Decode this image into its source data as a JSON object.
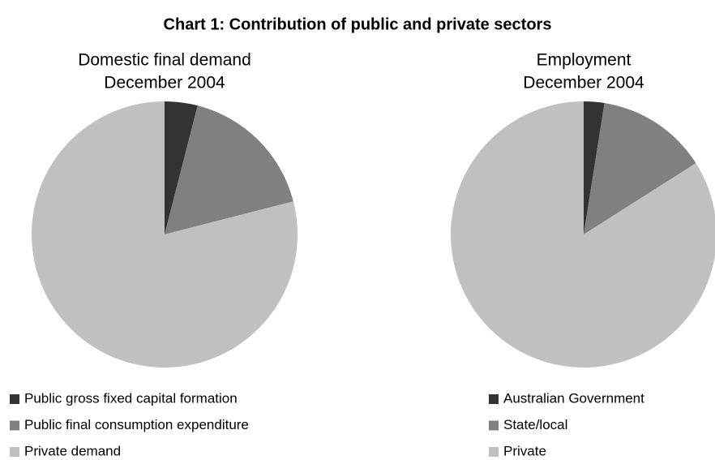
{
  "title": "Chart 1:  Contribution of public and private sectors",
  "chart_data": [
    {
      "type": "pie",
      "title": "Domestic final demand",
      "subtitle": "December 2004",
      "categories": [
        "Public gross fixed capital formation",
        "Public final consumption expenditure",
        "Private demand"
      ],
      "values": [
        4,
        17,
        79
      ],
      "colors": [
        "#333333",
        "#808080",
        "#c0c0c0"
      ]
    },
    {
      "type": "pie",
      "title": "Employment",
      "subtitle": "December 2004",
      "categories": [
        "Australian Government",
        "State/local",
        "Private"
      ],
      "values": [
        2.5,
        13.5,
        84
      ],
      "colors": [
        "#333333",
        "#808080",
        "#c0c0c0"
      ]
    }
  ]
}
